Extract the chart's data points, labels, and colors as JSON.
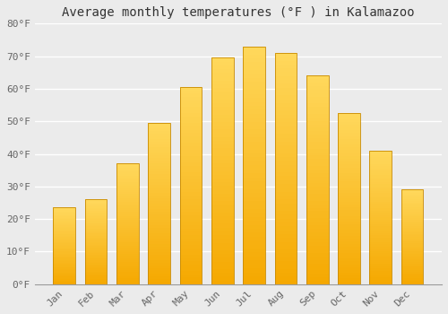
{
  "months": [
    "Jan",
    "Feb",
    "Mar",
    "Apr",
    "May",
    "Jun",
    "Jul",
    "Aug",
    "Sep",
    "Oct",
    "Nov",
    "Dec"
  ],
  "temperatures": [
    23.5,
    26.0,
    37.0,
    49.5,
    60.5,
    69.5,
    73.0,
    71.0,
    64.0,
    52.5,
    41.0,
    29.0
  ],
  "bar_color_bottom": "#F5A800",
  "bar_color_top": "#FFD85C",
  "bar_edge_color": "#C88A00",
  "title": "Average monthly temperatures (°F ) in Kalamazoo",
  "ylim": [
    0,
    80
  ],
  "ytick_step": 10,
  "background_color": "#ebebeb",
  "grid_color": "#ffffff",
  "title_fontsize": 10,
  "tick_fontsize": 8,
  "font_family": "monospace"
}
